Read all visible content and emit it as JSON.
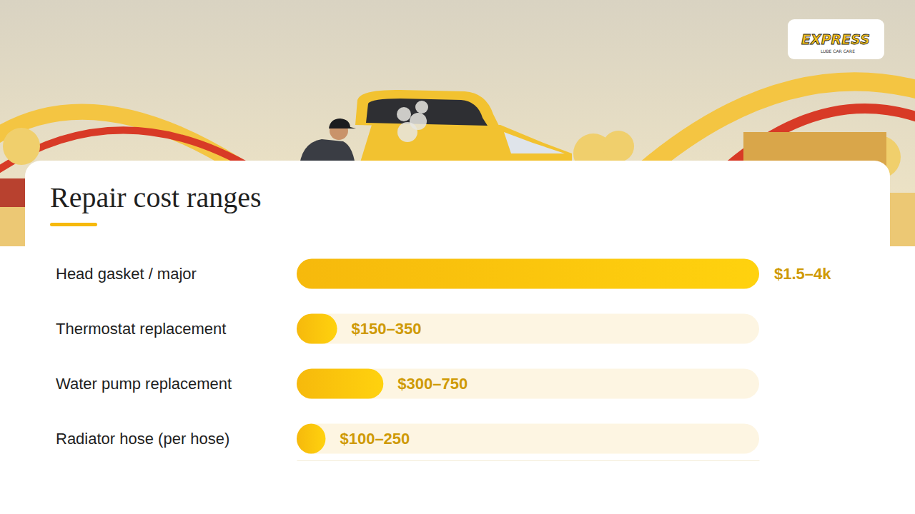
{
  "chart_data": {
    "type": "bar",
    "orientation": "horizontal",
    "title": "Repair cost ranges",
    "categories": [
      "Head gasket / major",
      "Thermostat replacement",
      "Water pump replacement",
      "Radiator hose (per hose)"
    ],
    "values": [
      4000,
      350,
      750,
      250
    ],
    "value_labels": [
      "$1.5–4k",
      "$150–350",
      "$300–750",
      "$100–250"
    ],
    "color": "#f6b90c",
    "xlim": [
      0,
      4000
    ],
    "data_labels": true,
    "tick_labels": false,
    "grid": false
  },
  "logo": {
    "main": "EXPRESS",
    "sub": "LUBE   CAR CARE"
  }
}
